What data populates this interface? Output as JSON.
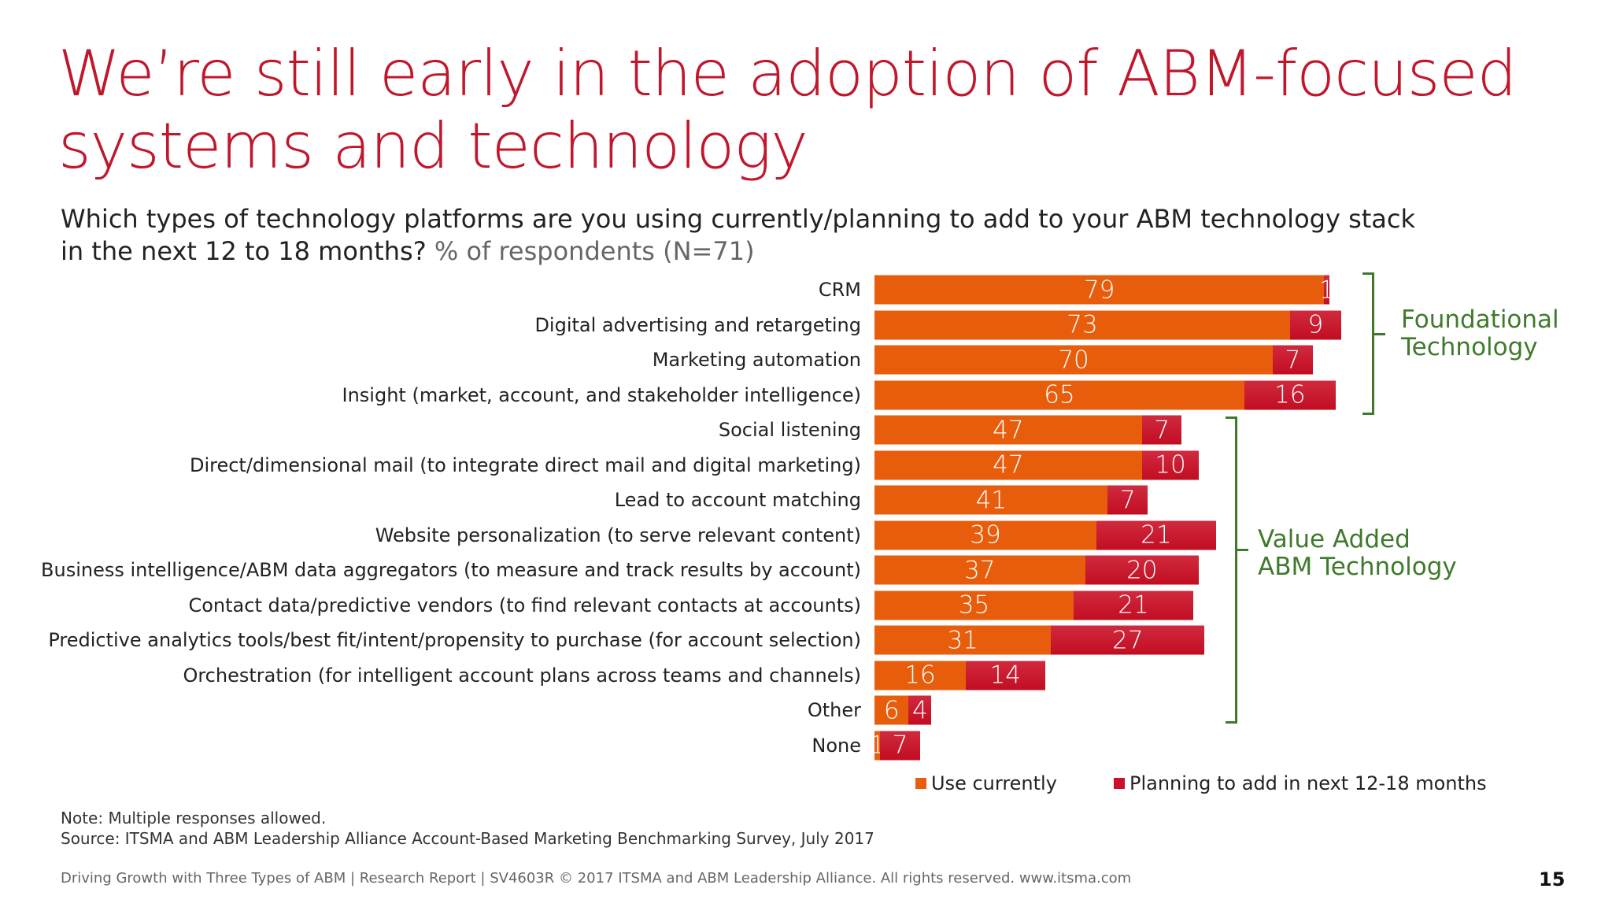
{
  "title": [
    "We’re still early in the adoption of ABM-focused",
    "systems and technology"
  ],
  "subtitle": {
    "line1": "Which types of technology platforms are you using currently/planning to add to your ABM technology stack",
    "line2_main": "in the next 12 to 18 months?",
    "line2_gray": " % of respondents (N=71)"
  },
  "chart_data": {
    "type": "bar",
    "orientation": "horizontal",
    "stacked": true,
    "categories": [
      "CRM",
      "Digital advertising and retargeting",
      "Marketing automation",
      "Insight (market, account, and stakeholder intelligence)",
      "Social listening",
      "Direct/dimensional mail (to integrate direct mail and digital marketing)",
      "Lead to account matching",
      "Website personalization (to serve relevant content)",
      "Business intelligence/ABM data aggregators (to measure and track results by account)",
      "Contact data/predictive vendors (to find relevant contacts at accounts)",
      "Predictive analytics tools/best fit/intent/propensity to purchase (for account selection)",
      "Orchestration (for intelligent account plans across teams and channels)",
      "Other",
      "None"
    ],
    "series": [
      {
        "name": "Use currently",
        "color": "#e85d0c",
        "values": [
          79,
          73,
          70,
          65,
          47,
          47,
          41,
          39,
          37,
          35,
          31,
          16,
          6,
          1
        ]
      },
      {
        "name": "Planning to add in next 12-18 months",
        "color": "#c8102e",
        "values": [
          1,
          9,
          7,
          16,
          7,
          10,
          7,
          21,
          20,
          21,
          27,
          14,
          4,
          7
        ]
      }
    ],
    "legend_placement": "bottom",
    "groups": [
      {
        "label": [
          "Foundational",
          "Technology"
        ],
        "range": "CRM – Insight"
      },
      {
        "label": [
          "Value Added",
          "ABM Technology"
        ],
        "range": "Social listening – Other"
      }
    ],
    "group_color": "#3f7a2c"
  },
  "note": "Note: Multiple responses allowed.",
  "source": "Source: ITSMA and ABM Leadership Alliance Account-Based Marketing Benchmarking Survey, July 2017",
  "footer": "Driving Growth with Three Types of ABM | Research Report | SV4603R © 2017 ITSMA and ABM Leadership Alliance. All rights reserved. www.itsma.com",
  "page_number": "15"
}
